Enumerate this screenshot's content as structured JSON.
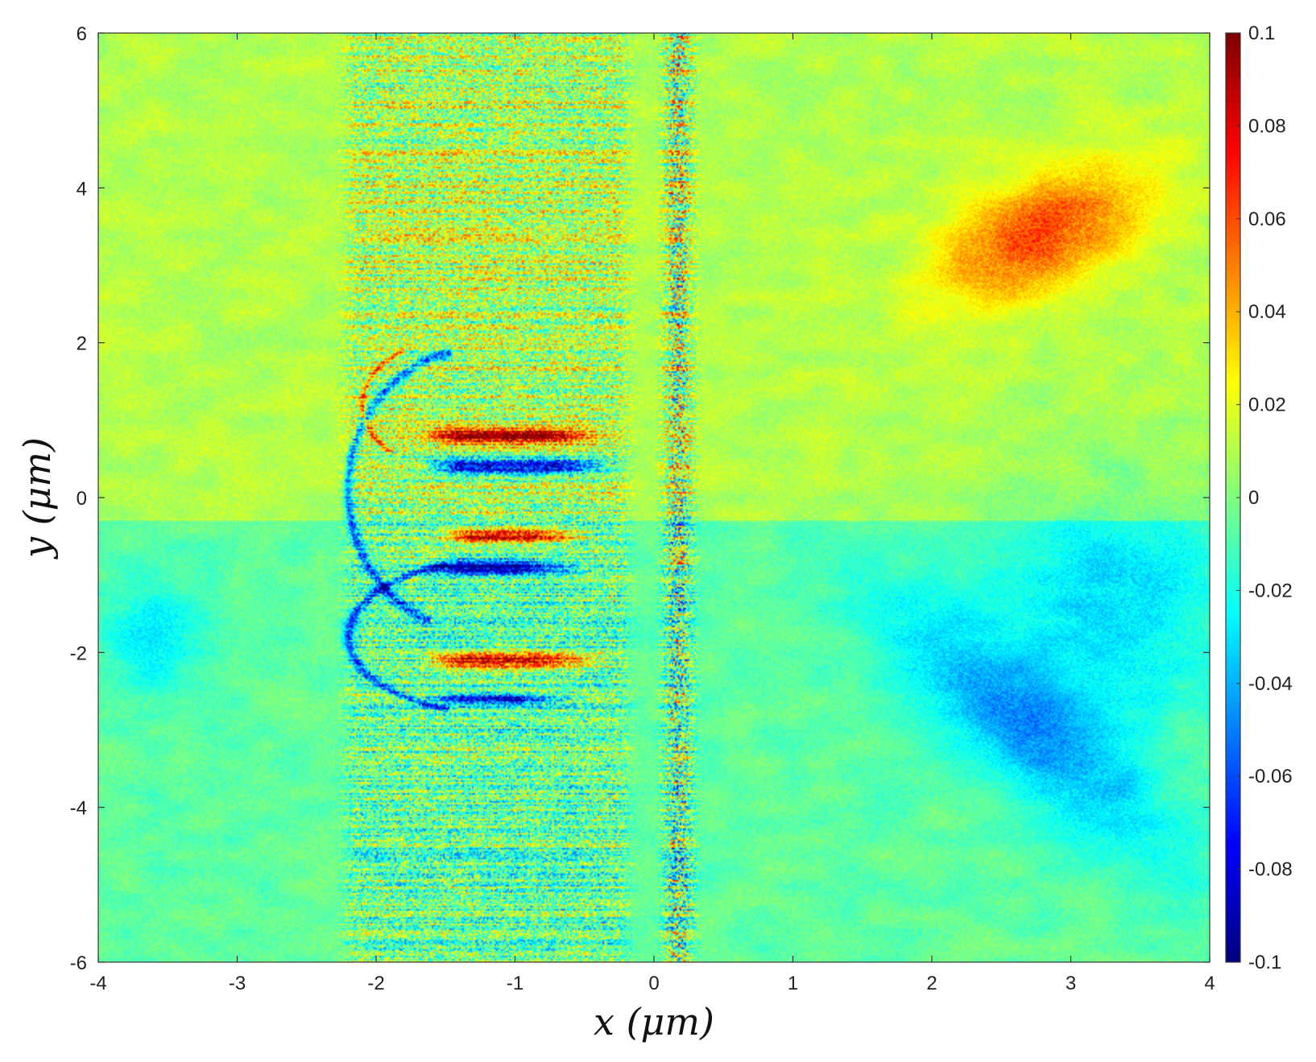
{
  "chart_data": {
    "type": "heatmap",
    "title": "",
    "xlabel": "x (μm)",
    "ylabel": "y (μm)",
    "xlim": [
      -4,
      4
    ],
    "ylim": [
      -6,
      6
    ],
    "x_ticks": [
      -4,
      -3,
      -2,
      -1,
      0,
      1,
      2,
      3,
      4
    ],
    "x_tick_labels": [
      "-4",
      "-3",
      "-2",
      "-1",
      "0",
      "1",
      "2",
      "3",
      "4"
    ],
    "y_ticks": [
      6,
      4,
      2,
      0,
      -2,
      -4,
      -6
    ],
    "y_tick_labels": [
      "6",
      "4",
      "2",
      "0",
      "-2",
      "-4",
      "-6"
    ],
    "colorbar": {
      "range": [
        -0.1,
        0.1
      ],
      "colormap": "jet",
      "ticks": [
        0.1,
        0.08,
        0.06,
        0.04,
        0.02,
        0,
        -0.02,
        -0.04,
        -0.06,
        -0.08,
        -0.1
      ],
      "tick_labels": [
        "0.1",
        "0.08",
        "0.06",
        "0.04",
        "0.02",
        "0",
        "-0.02",
        "-0.04",
        "-0.06",
        "-0.08",
        "-0.1"
      ]
    },
    "background_value": 0.01,
    "features": [
      {
        "kind": "blob",
        "x": 2.8,
        "y": 3.4,
        "rx": 0.55,
        "ry": 1.0,
        "angle": -35,
        "value": 0.05
      },
      {
        "kind": "blob",
        "x": 2.7,
        "y": -3.0,
        "rx": 0.5,
        "ry": 1.9,
        "angle": 30,
        "value": -0.035
      },
      {
        "kind": "blob",
        "x": 3.3,
        "y": -1.4,
        "rx": 0.9,
        "ry": 1.6,
        "angle": 0,
        "value": -0.025
      },
      {
        "kind": "blob",
        "x": -3.6,
        "y": -1.8,
        "rx": 0.4,
        "ry": 0.8,
        "angle": 0,
        "value": -0.02
      },
      {
        "kind": "streak",
        "x1": -1.6,
        "x2": -0.3,
        "y": 0.8,
        "half_width": 0.1,
        "value": 0.09
      },
      {
        "kind": "streak",
        "x1": -1.6,
        "x2": -0.2,
        "y": 0.4,
        "half_width": 0.1,
        "value": -0.1
      },
      {
        "kind": "streak",
        "x1": -1.5,
        "x2": -0.4,
        "y": -0.5,
        "half_width": 0.1,
        "value": 0.09
      },
      {
        "kind": "streak",
        "x1": -1.6,
        "x2": -0.5,
        "y": -0.9,
        "half_width": 0.1,
        "value": -0.09
      },
      {
        "kind": "streak",
        "x1": -1.6,
        "x2": -0.3,
        "y": -2.1,
        "half_width": 0.1,
        "value": 0.09
      },
      {
        "kind": "streak",
        "x1": -1.6,
        "x2": -0.5,
        "y": -2.6,
        "half_width": 0.06,
        "value": -0.09
      },
      {
        "kind": "arc",
        "cx": -1.3,
        "cy": 0.1,
        "rx": 0.9,
        "ry": 1.8,
        "from_deg": 100,
        "to_deg": 250,
        "value": -0.08
      },
      {
        "kind": "arc",
        "cx": -1.1,
        "cy": -1.8,
        "rx": 1.1,
        "ry": 1.0,
        "from_deg": 110,
        "to_deg": 250,
        "value": -0.08
      },
      {
        "kind": "arc",
        "cx": -1.5,
        "cy": 1.2,
        "rx": 0.6,
        "ry": 0.8,
        "from_deg": 120,
        "to_deg": 230,
        "value": 0.07
      },
      {
        "kind": "noise_band",
        "x1": -2.3,
        "x2": -0.1,
        "amplitude": 0.045
      },
      {
        "kind": "noise_band",
        "x1": 0.0,
        "x2": 0.35,
        "amplitude": 0.08
      }
    ]
  }
}
